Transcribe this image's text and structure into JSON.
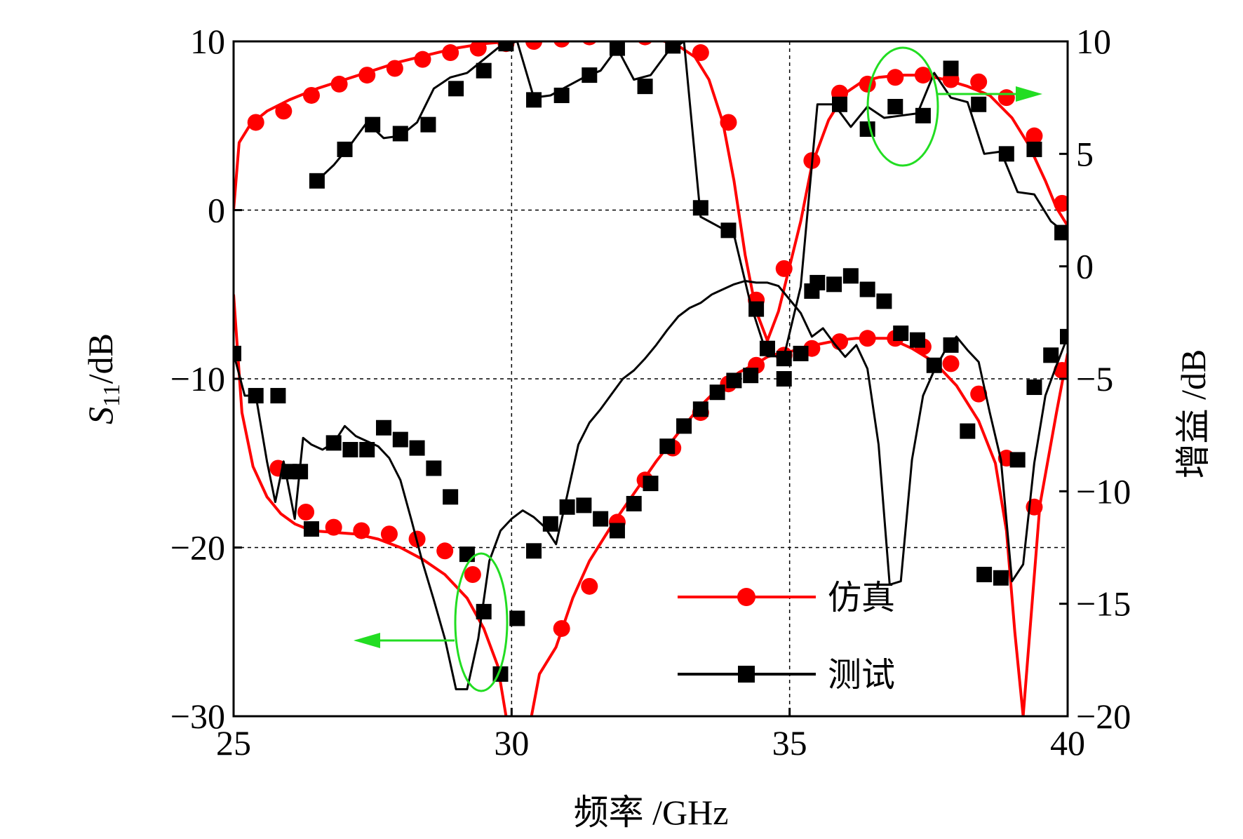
{
  "chart_data": {
    "type": "line",
    "xlabel": "频率 /GHz",
    "ylabel_left_main": "S",
    "ylabel_left_sub": "11",
    "ylabel_left_unit": "/dB",
    "ylabel_right": "增益 /dB",
    "xlim": [
      25,
      40
    ],
    "ylim_left": [
      -30,
      10
    ],
    "ylim_right": [
      -20,
      10
    ],
    "x_ticks": [
      25,
      30,
      35,
      40
    ],
    "y_left_ticks": [
      10,
      0,
      -10,
      -20,
      -30
    ],
    "y_right_ticks": [
      10,
      5,
      0,
      -5,
      -10,
      -15,
      -20
    ],
    "x_tick_labels": [
      "25",
      "30",
      "35",
      "40"
    ],
    "y_left_tick_labels": [
      "10",
      "0",
      "−10",
      "−20",
      "−30"
    ],
    "y_right_tick_labels": [
      "10",
      "5",
      "0",
      "−5",
      "−10",
      "−15",
      "−20"
    ],
    "grid": true,
    "legend_position": "lower-right",
    "series": [
      {
        "name": "仿真",
        "axis": "left",
        "quantity": "S11",
        "color": "#ff0000",
        "marker": "circle",
        "x": [
          25.0,
          25.15,
          25.35,
          25.6,
          25.85,
          26.1,
          26.4,
          26.8,
          27.2,
          27.6,
          28.0,
          28.4,
          28.8,
          29.2,
          29.5,
          29.75,
          29.95,
          30.3,
          30.5,
          30.8,
          31.1,
          31.4,
          31.8,
          32.2,
          32.6,
          33.0,
          33.4,
          33.8,
          34.1,
          34.4,
          34.6,
          34.8,
          35.0,
          35.3,
          35.6,
          35.9,
          36.2,
          36.5,
          36.8,
          37.2,
          37.6,
          38.0,
          38.4,
          38.7,
          38.9,
          39.05,
          39.2,
          39.5,
          39.8,
          40.0
        ],
        "y": [
          -5,
          -12,
          -15.2,
          -17,
          -18,
          -18.6,
          -19.0,
          -19.1,
          -19.2,
          -19.5,
          -20.0,
          -20.7,
          -21.6,
          -23,
          -24.8,
          -27.0,
          -31,
          -31,
          -27.5,
          -25.9,
          -23.0,
          -20.8,
          -18.7,
          -16.8,
          -14.9,
          -13.2,
          -11.6,
          -10.3,
          -9.6,
          -9.1,
          -8.7,
          -8.5,
          -8.4,
          -8.1,
          -7.9,
          -7.7,
          -7.6,
          -7.6,
          -7.6,
          -8.2,
          -9.0,
          -10.4,
          -12.5,
          -15.0,
          -19.0,
          -25.0,
          -30.0,
          -17.5,
          -12.0,
          -8.5
        ],
        "markers_x": [
          25.8,
          26.3,
          26.8,
          27.3,
          27.8,
          28.3,
          28.8,
          29.3,
          30.9,
          31.4,
          31.9,
          32.4,
          32.9,
          33.4,
          33.9,
          34.4,
          34.9,
          35.4,
          35.9,
          36.4,
          36.9,
          37.4,
          37.9,
          38.4,
          38.9,
          39.4,
          39.9
        ],
        "markers_y": [
          -15.3,
          -17.9,
          -18.8,
          -19.0,
          -19.2,
          -19.5,
          -20.2,
          -21.6,
          -24.8,
          -22.3,
          -18.5,
          -16.0,
          -14.1,
          -12.0,
          -10.3,
          -9.2,
          -8.6,
          -8.2,
          -7.8,
          -7.6,
          -7.6,
          -8.1,
          -9.1,
          -10.9,
          -14.7,
          -17.6,
          -9.5
        ]
      },
      {
        "name": "测试",
        "axis": "left",
        "quantity": "S11",
        "color": "#000000",
        "marker": "square",
        "x": [
          25.0,
          25.2,
          25.4,
          25.6,
          25.75,
          25.9,
          26.1,
          26.25,
          26.4,
          26.6,
          26.8,
          27.0,
          27.2,
          27.4,
          27.6,
          27.8,
          28.0,
          28.2,
          28.4,
          28.6,
          28.8,
          29.0,
          29.2,
          29.4,
          29.6,
          29.8,
          30.0,
          30.2,
          30.4,
          30.6,
          30.8,
          31.0,
          31.2,
          31.4,
          31.6,
          31.8,
          32.0,
          32.2,
          32.4,
          32.6,
          32.8,
          33.0,
          33.2,
          33.4,
          33.6,
          33.8,
          34.0,
          34.2,
          34.4,
          34.6,
          34.8,
          35.0,
          35.2,
          35.4,
          35.6,
          35.8,
          36.0,
          36.2,
          36.4,
          36.6,
          36.8,
          37.0,
          37.2,
          37.4,
          37.6,
          37.8,
          38.0,
          38.2,
          38.4,
          38.6,
          38.8,
          39.0,
          39.2,
          39.4,
          39.6,
          39.8,
          40.0
        ],
        "y": [
          -8.5,
          -11.0,
          -11.0,
          -14.9,
          -17.3,
          -14.9,
          -18.3,
          -13.5,
          -13.9,
          -14.2,
          -13.8,
          -12.8,
          -13.4,
          -13.7,
          -14.0,
          -14.7,
          -16.0,
          -18.4,
          -20.9,
          -23.1,
          -25.4,
          -28.4,
          -28.4,
          -25.4,
          -20.8,
          -19.0,
          -18.3,
          -17.8,
          -18.2,
          -18.8,
          -19.8,
          -16.9,
          -13.9,
          -12.6,
          -11.8,
          -10.9,
          -10.0,
          -9.5,
          -8.8,
          -8.0,
          -7.1,
          -6.3,
          -5.8,
          -5.5,
          -5.0,
          -4.7,
          -4.4,
          -4.2,
          -4.3,
          -4.3,
          -4.5,
          -5.3,
          -6.1,
          -7.5,
          -7.0,
          -7.9,
          -8.7,
          -8.0,
          -9.4,
          -13.9,
          -22.2,
          -22.0,
          -14.8,
          -11.0,
          -9.5,
          -8.3,
          -7.5,
          -8.3,
          -9.0,
          -12.0,
          -14.8,
          -22.0,
          -21.0,
          -15.0,
          -11.0,
          -9.2,
          -7.5
        ],
        "markers_x": [
          25.0,
          25.4,
          25.8,
          26.0,
          26.2,
          26.4,
          26.8,
          27.1,
          27.4,
          27.7,
          28.0,
          28.3,
          28.6,
          28.9,
          29.2,
          29.5,
          29.8,
          30.1,
          30.4,
          30.7,
          31.0,
          31.3,
          31.6,
          31.9,
          32.2,
          32.5,
          32.8,
          33.1,
          33.4,
          33.7,
          34.0,
          34.3,
          34.6,
          34.9,
          35.2,
          35.5,
          35.8,
          36.1,
          36.4,
          36.7,
          37.0,
          37.3,
          37.6,
          37.9,
          38.2,
          38.5,
          38.8,
          39.1,
          39.4,
          39.7,
          40.0
        ],
        "markers_y": [
          -8.5,
          -11.0,
          -11.0,
          -15.5,
          -15.5,
          -18.9,
          -13.8,
          -14.2,
          -14.2,
          -12.9,
          -13.6,
          -14.1,
          -15.3,
          -17.0,
          -20.4,
          -23.8,
          -27.5,
          -24.2,
          -20.2,
          -18.6,
          -17.6,
          -17.5,
          -18.3,
          -19.0,
          -17.4,
          -16.2,
          -14.0,
          -12.8,
          -11.8,
          -10.8,
          -10.1,
          -9.8,
          -8.2,
          -10.0,
          -8.5,
          -4.3,
          -4.4,
          -3.9,
          -4.7,
          -5.4,
          -7.3,
          -7.7,
          -9.2,
          -8.0,
          -13.1,
          -21.6,
          -21.8,
          -14.8,
          -10.5,
          -8.6,
          -7.5
        ]
      },
      {
        "name": "仿真",
        "axis": "right",
        "quantity": "gain",
        "color": "#ff0000",
        "marker": "circle",
        "x": [
          25.0,
          25.1,
          25.3,
          25.6,
          26.0,
          26.5,
          27.0,
          27.5,
          28.0,
          28.5,
          29.0,
          29.5,
          30.0,
          30.5,
          31.0,
          31.5,
          32.0,
          32.5,
          33.0,
          33.3,
          33.55,
          33.8,
          34.0,
          34.2,
          34.4,
          34.6,
          34.8,
          35.0,
          35.2,
          35.4,
          35.7,
          36.0,
          36.3,
          36.6,
          37.0,
          37.4,
          37.8,
          38.2,
          38.6,
          39.0,
          39.3,
          39.6,
          39.8,
          40.0
        ],
        "y": [
          2.5,
          5.5,
          6.3,
          6.9,
          7.4,
          7.9,
          8.3,
          8.7,
          9.1,
          9.4,
          9.7,
          9.9,
          10.0,
          10.1,
          10.2,
          10.3,
          10.3,
          10.2,
          9.8,
          9.3,
          8.3,
          6.4,
          3.8,
          0.5,
          -2.0,
          -3.3,
          -2.0,
          0.0,
          2.0,
          4.5,
          6.5,
          7.7,
          8.2,
          8.4,
          8.5,
          8.5,
          8.3,
          8.0,
          7.6,
          6.6,
          5.4,
          3.8,
          2.6,
          1.8
        ],
        "markers_x": [
          25.4,
          25.9,
          26.4,
          26.9,
          27.4,
          27.9,
          28.4,
          28.9,
          29.4,
          29.9,
          30.4,
          30.9,
          31.4,
          31.9,
          32.4,
          32.9,
          33.4,
          33.9,
          34.4,
          34.9,
          35.4,
          35.9,
          36.4,
          36.9,
          37.4,
          37.9,
          38.4,
          38.9,
          39.4,
          39.9
        ],
        "markers_y": [
          6.4,
          6.9,
          7.6,
          8.1,
          8.5,
          8.8,
          9.2,
          9.5,
          9.7,
          9.9,
          10.0,
          10.1,
          10.2,
          10.2,
          10.2,
          10.2,
          9.5,
          6.4,
          -1.5,
          -0.1,
          4.7,
          7.7,
          8.1,
          8.4,
          8.5,
          8.3,
          8.2,
          7.5,
          5.8,
          2.8
        ]
      },
      {
        "name": "测试",
        "axis": "right",
        "quantity": "gain",
        "color": "#000000",
        "marker": "square",
        "x": [
          26.5,
          26.8,
          27.1,
          27.4,
          27.7,
          28.0,
          28.3,
          28.6,
          28.9,
          29.2,
          29.5,
          29.8,
          30.1,
          30.4,
          30.7,
          31.0,
          31.3,
          31.6,
          31.9,
          32.2,
          32.5,
          32.8,
          33.1,
          33.4,
          33.7,
          34.0,
          34.3,
          34.6,
          34.9,
          35.2,
          35.5,
          35.8,
          36.1,
          36.4,
          36.7,
          37.0,
          37.3,
          37.6,
          37.9,
          38.2,
          38.5,
          38.8,
          39.1,
          39.4,
          39.7,
          40.0
        ],
        "y": [
          3.8,
          4.5,
          5.4,
          6.4,
          5.7,
          5.8,
          6.4,
          7.9,
          8.4,
          8.6,
          9.2,
          9.8,
          10.0,
          7.5,
          7.6,
          8.0,
          8.4,
          8.7,
          9.7,
          8.3,
          8.5,
          9.5,
          10.0,
          2.2,
          1.8,
          1.4,
          -1.7,
          -4.0,
          -4.0,
          -0.9,
          7.2,
          7.2,
          6.2,
          7.1,
          6.6,
          6.7,
          6.8,
          8.6,
          7.5,
          7.3,
          5.0,
          5.1,
          3.3,
          3.2,
          2.0,
          1.4
        ],
        "markers_x": [
          26.5,
          27.0,
          27.5,
          28.0,
          28.5,
          29.0,
          29.5,
          29.9,
          30.4,
          30.9,
          31.4,
          31.9,
          32.4,
          32.9,
          33.4,
          33.9,
          34.4,
          34.9,
          35.4,
          35.9,
          36.4,
          36.9,
          37.4,
          37.9,
          38.4,
          38.9,
          39.4,
          39.9
        ],
        "markers_y": [
          3.8,
          5.2,
          6.3,
          5.9,
          6.3,
          7.9,
          8.7,
          9.9,
          7.4,
          7.6,
          8.5,
          9.7,
          8.0,
          9.8,
          2.6,
          1.6,
          -1.9,
          -4.1,
          -1.1,
          7.2,
          6.1,
          7.1,
          6.7,
          8.8,
          7.2,
          5.0,
          5.2,
          1.5
        ]
      }
    ]
  }
}
